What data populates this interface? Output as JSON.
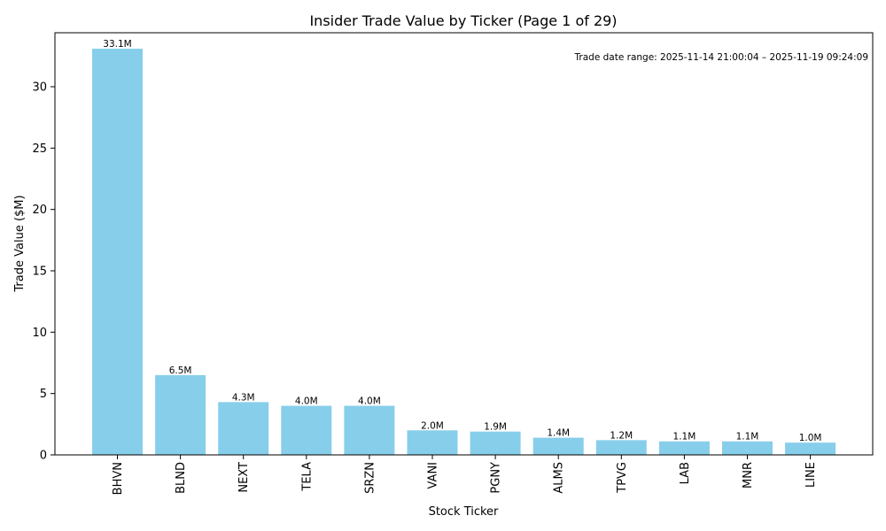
{
  "chart_data": {
    "type": "bar",
    "title": "Insider Trade Value by Ticker (Page 1 of 29)",
    "xlabel": "Stock Ticker",
    "ylabel": "Trade Value ($M)",
    "categories": [
      "BHVN",
      "BLND",
      "NEXT",
      "TELA",
      "SRZN",
      "VANI",
      "PGNY",
      "ALMS",
      "TPVG",
      "LAB",
      "MNR",
      "LINE"
    ],
    "values": [
      33.1,
      6.5,
      4.3,
      4.0,
      4.0,
      2.0,
      1.9,
      1.4,
      1.2,
      1.1,
      1.1,
      1.0
    ],
    "data_labels": [
      "33.1M",
      "6.5M",
      "4.3M",
      "4.0M",
      "4.0M",
      "2.0M",
      "1.9M",
      "1.4M",
      "1.2M",
      "1.1M",
      "1.1M",
      "1.0M"
    ],
    "ylim": [
      0,
      34.4
    ],
    "yticks": [
      0,
      5,
      10,
      15,
      20,
      25,
      30
    ],
    "grid": false,
    "bar_color": "#87ceeb",
    "annotation": "Trade date range: 2025-11-14 21:00:04 – 2025-11-19 09:24:09"
  }
}
